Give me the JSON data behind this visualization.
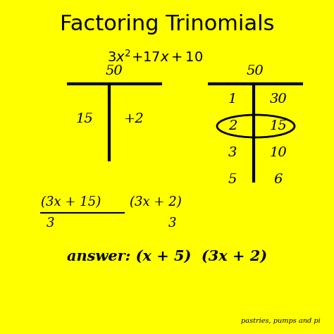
{
  "background_color": "#FFFF00",
  "title": "Factoring Trinomials",
  "title_fontsize": 22,
  "text_color": "#000000",
  "watermark": "pastries, pumps and pi",
  "left_t_top": "50",
  "left_t_left": "15",
  "left_t_right": "+2",
  "right_t_top": "50",
  "right_table_left": [
    "1",
    "2",
    "3",
    "5"
  ],
  "right_table_right": [
    "30",
    "15",
    "10",
    "6"
  ],
  "ellipse_row": 1,
  "fraction_text1": "(3x + 15)",
  "fraction_denom1": "3",
  "fraction_text2": "(3x + 2)",
  "fraction_denom2": "3",
  "answer": "answer: (x + 5)  (3x + 2)"
}
